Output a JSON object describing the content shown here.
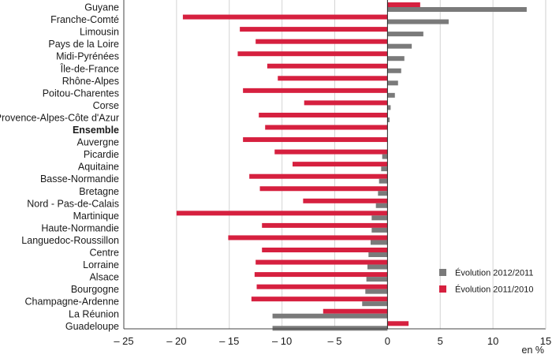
{
  "chart_data": {
    "type": "bar",
    "orientation": "horizontal",
    "title": "",
    "xlabel": "en %",
    "ylabel": "",
    "xlim": [
      -25,
      15
    ],
    "xticks": [
      -25,
      -20,
      -15,
      -10,
      -5,
      0,
      5,
      10,
      15
    ],
    "xtick_labels": [
      "– 25",
      "– 20",
      "– 15",
      "– 10",
      "– 5",
      "0",
      "5",
      "10",
      "15"
    ],
    "grid": true,
    "legend_position": "bottom-right",
    "categories": [
      "Guyane",
      "Franche-Comté",
      "Limousin",
      "Pays de la Loire",
      "Midi-Pyrénées",
      "Île-de-France",
      "Rhône-Alpes",
      "Poitou-Charentes",
      "Corse",
      "Provence-Alpes-Côte d'Azur",
      "Ensemble",
      "Auvergne",
      "Picardie",
      "Aquitaine",
      "Basse-Normandie",
      "Bretagne",
      "Nord - Pas-de-Calais",
      "Martinique",
      "Haute-Normandie",
      "Languedoc-Roussillon",
      "Centre",
      "Lorraine",
      "Alsace",
      "Bourgogne",
      "Champagne-Ardenne",
      "La Réunion",
      "Guadeloupe"
    ],
    "bold_categories": [
      "Ensemble"
    ],
    "series": [
      {
        "name": "Évolution 2011/2010",
        "color": "#d6203f",
        "values": [
          3.1,
          -19.4,
          -14.0,
          -12.5,
          -14.2,
          -11.4,
          -10.4,
          -13.7,
          -7.9,
          -12.2,
          -11.6,
          -13.7,
          -10.7,
          -9.0,
          -13.1,
          -12.1,
          -8.0,
          -20.0,
          -11.9,
          -15.1,
          -11.9,
          -12.5,
          -12.6,
          -12.4,
          -12.9,
          -6.1,
          2.0
        ]
      },
      {
        "name": "Évolution 2012/2011",
        "color": "#7a7a7a",
        "values": [
          13.2,
          5.8,
          3.4,
          2.3,
          1.6,
          1.3,
          1.0,
          0.7,
          0.3,
          0.2,
          0.0,
          0.0,
          -0.5,
          -0.6,
          -0.8,
          -0.9,
          -1.1,
          -1.5,
          -1.5,
          -1.6,
          -1.8,
          -1.9,
          -2.0,
          -2.1,
          -2.4,
          -10.9,
          -10.9
        ]
      }
    ],
    "legend": [
      {
        "label": "Évolution 2012/2011",
        "color": "#7a7a7a"
      },
      {
        "label": "Évolution 2011/2010",
        "color": "#d6203f"
      }
    ]
  }
}
